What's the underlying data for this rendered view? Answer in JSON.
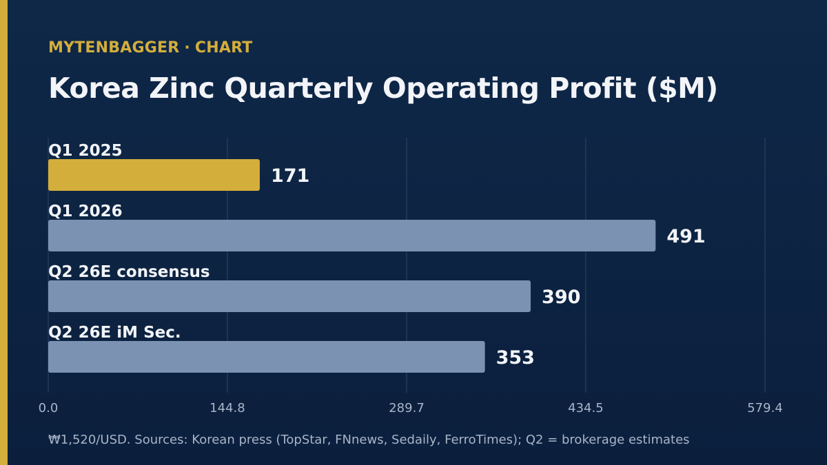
{
  "header": {
    "brand": "MYTENBAGGER",
    "separator": "·",
    "section": "CHART"
  },
  "colors": {
    "background": "#0d2342",
    "accent": "#d4ae3b",
    "bar_default": "#7b92b3",
    "gridline": "#2e4768",
    "text": "#f2f4f8",
    "tick_text": "#a9b5c8"
  },
  "chart_data": {
    "type": "bar",
    "orientation": "horizontal",
    "title": "Korea Zinc Quarterly Operating Profit ($M)",
    "categories": [
      "Q1 2025",
      "Q1 2026",
      "Q2 26E consensus",
      "Q2 26E iM Sec."
    ],
    "values": [
      171,
      491,
      390,
      353
    ],
    "value_labels": [
      "171",
      "491",
      "390",
      "353"
    ],
    "highlight_index": 0,
    "xlim": [
      0,
      579.4
    ],
    "xticks": [
      0,
      144.8,
      289.7,
      434.5,
      579.4
    ],
    "xtick_labels": [
      "0.0",
      "144.8",
      "289.7",
      "434.5",
      "579.4"
    ],
    "grid": true
  },
  "footer": {
    "note": "₩1,520/USD. Sources: Korean press (TopStar, FNnews, Sedaily, FerroTimes); Q2 = brokerage estimates"
  }
}
